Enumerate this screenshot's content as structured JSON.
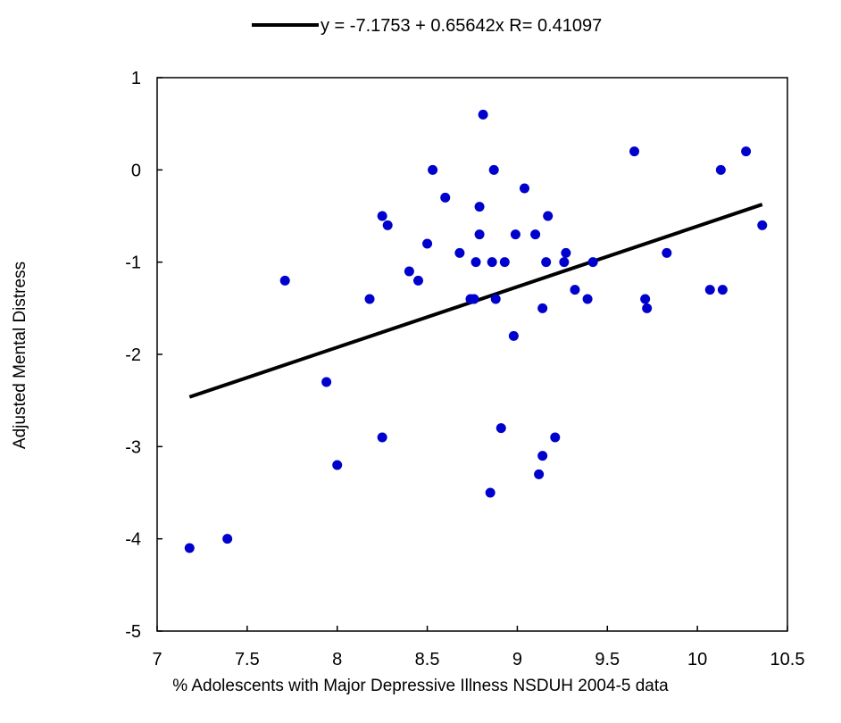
{
  "chart_data": {
    "type": "scatter",
    "title": "",
    "xlabel": "% Adolescents with Major Depressive Illness NSDUH 2004-5 data",
    "ylabel": "Adjusted Mental Distress",
    "xlim": [
      7,
      10.5
    ],
    "ylim": [
      -5,
      1
    ],
    "x_ticks": [
      7,
      7.5,
      8,
      8.5,
      9,
      9.5,
      10,
      10.5
    ],
    "x_tick_labels": [
      "7",
      "7.5",
      "8",
      "8.5",
      "9",
      "9.5",
      "10",
      "10.5"
    ],
    "y_ticks": [
      1,
      0,
      -1,
      -2,
      -3,
      -4,
      -5
    ],
    "y_tick_labels": [
      "1",
      "0",
      "-1",
      "-2",
      "-3",
      "-4",
      "-5"
    ],
    "grid": false,
    "legend_position": "top-center",
    "fit": {
      "label": "y = -7.1753 + 0.65642x    R= 0.41097",
      "intercept": -7.1753,
      "slope": 0.65642,
      "x_range": [
        7.18,
        10.36
      ],
      "color": "#000000"
    },
    "points_color": "#0000cc",
    "points": [
      {
        "x": 7.18,
        "y": -4.1
      },
      {
        "x": 7.39,
        "y": -4.0
      },
      {
        "x": 7.71,
        "y": -1.2
      },
      {
        "x": 7.94,
        "y": -2.3
      },
      {
        "x": 8.0,
        "y": -3.2
      },
      {
        "x": 8.18,
        "y": -1.4
      },
      {
        "x": 8.25,
        "y": -0.5
      },
      {
        "x": 8.25,
        "y": -2.9
      },
      {
        "x": 8.28,
        "y": -0.6
      },
      {
        "x": 8.4,
        "y": -1.1
      },
      {
        "x": 8.45,
        "y": -1.2
      },
      {
        "x": 8.5,
        "y": -0.8
      },
      {
        "x": 8.53,
        "y": 0.0
      },
      {
        "x": 8.6,
        "y": -0.3
      },
      {
        "x": 8.68,
        "y": -0.9
      },
      {
        "x": 8.74,
        "y": -1.4
      },
      {
        "x": 8.76,
        "y": -1.4
      },
      {
        "x": 8.77,
        "y": -1.0
      },
      {
        "x": 8.79,
        "y": -0.4
      },
      {
        "x": 8.79,
        "y": -0.7
      },
      {
        "x": 8.81,
        "y": 0.6
      },
      {
        "x": 8.85,
        "y": -3.5
      },
      {
        "x": 8.86,
        "y": -1.0
      },
      {
        "x": 8.87,
        "y": 0.0
      },
      {
        "x": 8.88,
        "y": -1.4
      },
      {
        "x": 8.91,
        "y": -2.8
      },
      {
        "x": 8.93,
        "y": -1.0
      },
      {
        "x": 8.99,
        "y": -0.7
      },
      {
        "x": 8.98,
        "y": -1.8
      },
      {
        "x": 9.04,
        "y": -0.2
      },
      {
        "x": 9.1,
        "y": -0.7
      },
      {
        "x": 9.12,
        "y": -3.3
      },
      {
        "x": 9.14,
        "y": -1.5
      },
      {
        "x": 9.14,
        "y": -3.1
      },
      {
        "x": 9.16,
        "y": -1.0
      },
      {
        "x": 9.17,
        "y": -0.5
      },
      {
        "x": 9.21,
        "y": -2.9
      },
      {
        "x": 9.26,
        "y": -1.0
      },
      {
        "x": 9.27,
        "y": -0.9
      },
      {
        "x": 9.32,
        "y": -1.3
      },
      {
        "x": 9.39,
        "y": -1.4
      },
      {
        "x": 9.42,
        "y": -1.0
      },
      {
        "x": 9.65,
        "y": 0.2
      },
      {
        "x": 9.71,
        "y": -1.4
      },
      {
        "x": 9.72,
        "y": -1.5
      },
      {
        "x": 9.83,
        "y": -0.9
      },
      {
        "x": 10.07,
        "y": -1.3
      },
      {
        "x": 10.13,
        "y": 0.0
      },
      {
        "x": 10.14,
        "y": -1.3
      },
      {
        "x": 10.27,
        "y": 0.2
      },
      {
        "x": 10.36,
        "y": -0.6
      }
    ]
  }
}
